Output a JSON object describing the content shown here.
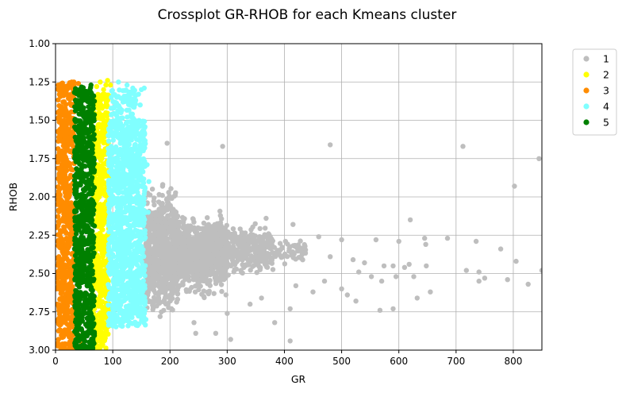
{
  "chart_data": {
    "type": "scatter",
    "title": "Crossplot GR-RHOB for each Kmeans cluster",
    "xlabel": "GR",
    "ylabel": "RHOB",
    "xlim": [
      0,
      850
    ],
    "ylim": [
      3.0,
      1.0
    ],
    "y_inverted": true,
    "xticks": [
      0,
      100,
      200,
      300,
      400,
      500,
      600,
      700,
      800
    ],
    "yticks": [
      1.0,
      1.25,
      1.5,
      1.75,
      2.0,
      2.25,
      2.5,
      2.75,
      3.0
    ],
    "ytick_labels": [
      "1.00",
      "1.25",
      "1.50",
      "1.75",
      "2.00",
      "2.25",
      "2.50",
      "2.75",
      "3.00"
    ],
    "grid": true,
    "legend_position": "outside-right-top",
    "series": [
      {
        "name": "1",
        "color": "#bebebe",
        "bands": [
          {
            "x_min": 155,
            "x_max": 215,
            "y_min": 1.85,
            "y_max": 2.85,
            "density": "high"
          },
          {
            "x_min": 215,
            "x_max": 300,
            "y_min": 2.05,
            "y_max": 2.7,
            "density": "high"
          },
          {
            "x_min": 300,
            "x_max": 380,
            "y_min": 2.15,
            "y_max": 2.55,
            "density": "medium"
          },
          {
            "x_min": 380,
            "x_max": 440,
            "y_min": 2.25,
            "y_max": 2.45,
            "density": "low"
          }
        ],
        "points": [
          [
            195,
            1.65
          ],
          [
            292,
            1.67
          ],
          [
            480,
            1.66
          ],
          [
            712,
            1.67
          ],
          [
            845,
            1.75
          ],
          [
            802,
            1.93
          ],
          [
            620,
            2.15
          ],
          [
            415,
            2.18
          ],
          [
            368,
            2.14
          ],
          [
            500,
            2.28
          ],
          [
            560,
            2.28
          ],
          [
            600,
            2.29
          ],
          [
            645,
            2.27
          ],
          [
            647,
            2.31
          ],
          [
            685,
            2.27
          ],
          [
            735,
            2.29
          ],
          [
            778,
            2.34
          ],
          [
            460,
            2.26
          ],
          [
            430,
            2.36
          ],
          [
            480,
            2.39
          ],
          [
            520,
            2.41
          ],
          [
            540,
            2.43
          ],
          [
            574,
            2.45
          ],
          [
            590,
            2.45
          ],
          [
            610,
            2.46
          ],
          [
            618,
            2.44
          ],
          [
            648,
            2.45
          ],
          [
            718,
            2.48
          ],
          [
            740,
            2.49
          ],
          [
            805,
            2.42
          ],
          [
            850,
            2.48
          ],
          [
            530,
            2.49
          ],
          [
            552,
            2.52
          ],
          [
            570,
            2.55
          ],
          [
            595,
            2.52
          ],
          [
            626,
            2.52
          ],
          [
            740,
            2.55
          ],
          [
            750,
            2.53
          ],
          [
            790,
            2.54
          ],
          [
            826,
            2.57
          ],
          [
            500,
            2.6
          ],
          [
            510,
            2.64
          ],
          [
            525,
            2.68
          ],
          [
            567,
            2.74
          ],
          [
            590,
            2.73
          ],
          [
            632,
            2.66
          ],
          [
            655,
            2.62
          ],
          [
            420,
            2.58
          ],
          [
            300,
            2.76
          ],
          [
            383,
            2.82
          ],
          [
            410,
            2.73
          ],
          [
            410,
            2.94
          ],
          [
            306,
            2.93
          ],
          [
            280,
            2.89
          ],
          [
            245,
            2.89
          ],
          [
            242,
            2.82
          ],
          [
            450,
            2.62
          ],
          [
            470,
            2.55
          ],
          [
            360,
            2.66
          ],
          [
            340,
            2.7
          ]
        ]
      },
      {
        "name": "2",
        "color": "#ffff00",
        "bands": [
          {
            "x_min": 64,
            "x_max": 93,
            "y_min": 1.33,
            "y_max": 3.0,
            "density": "high"
          }
        ],
        "points": [
          [
            78,
            1.25
          ],
          [
            88,
            1.27
          ],
          [
            96,
            1.27
          ],
          [
            84,
            1.3
          ],
          [
            91,
            1.24
          ],
          [
            72,
            1.28
          ]
        ]
      },
      {
        "name": "3",
        "color": "#ff8c00",
        "bands": [
          {
            "x_min": 4,
            "x_max": 33,
            "y_min": 1.25,
            "y_max": 3.0,
            "density": "high"
          }
        ],
        "points": [
          [
            3,
            2.05
          ],
          [
            2,
            2.2
          ],
          [
            1,
            2.4
          ],
          [
            2,
            2.6
          ],
          [
            3,
            2.7
          ],
          [
            36,
            2.95
          ],
          [
            40,
            2.9
          ],
          [
            46,
            2.96
          ],
          [
            32,
            1.25
          ],
          [
            40,
            1.26
          ]
        ]
      },
      {
        "name": "4",
        "color": "#80ffff",
        "bands": [
          {
            "x_min": 92,
            "x_max": 157,
            "y_min": 1.5,
            "y_max": 2.85,
            "density": "high"
          },
          {
            "x_min": 97,
            "x_max": 140,
            "y_min": 1.3,
            "y_max": 1.5,
            "density": "medium"
          }
        ],
        "points": [
          [
            110,
            1.25
          ],
          [
            125,
            1.27
          ],
          [
            135,
            1.29
          ],
          [
            150,
            1.3
          ],
          [
            155,
            1.29
          ],
          [
            145,
            1.33
          ],
          [
            140,
            1.37
          ],
          [
            148,
            1.4
          ],
          [
            160,
            1.79
          ],
          [
            163,
            1.9
          ],
          [
            162,
            2.1
          ],
          [
            158,
            2.8
          ]
        ]
      },
      {
        "name": "5",
        "color": "#008000",
        "bands": [
          {
            "x_min": 33,
            "x_max": 68,
            "y_min": 1.28,
            "y_max": 3.0,
            "density": "high"
          }
        ],
        "points": [
          [
            62,
            1.27
          ],
          [
            42,
            1.3
          ],
          [
            50,
            1.33
          ],
          [
            58,
            1.35
          ]
        ]
      }
    ]
  }
}
